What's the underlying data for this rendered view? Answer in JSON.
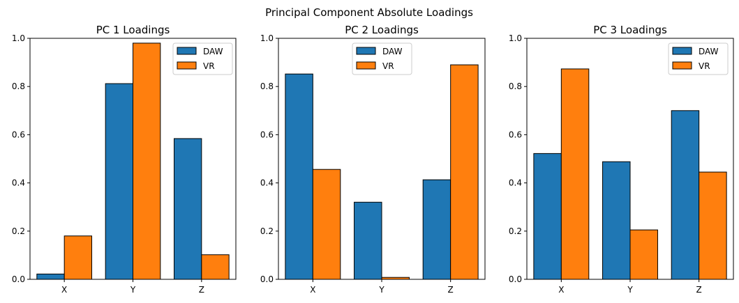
{
  "figure": {
    "title": "Principal Component Absolute Loadings"
  },
  "colors": {
    "DAW": "#1f77b4",
    "VR": "#ff7f0e",
    "edge": "#000000",
    "background": "#ffffff"
  },
  "chart_data": [
    {
      "type": "bar",
      "title": "PC 1 Loadings",
      "xlabel": "",
      "ylabel": "",
      "categories": [
        "X",
        "Y",
        "Z"
      ],
      "ylim": [
        0,
        1.0
      ],
      "yticks": [
        "0.0",
        "0.2",
        "0.4",
        "0.6",
        "0.8",
        "1.0"
      ],
      "grid": false,
      "legend": "top-right",
      "series": [
        {
          "name": "DAW",
          "values": [
            0.022,
            0.812,
            0.584
          ]
        },
        {
          "name": "VR",
          "values": [
            0.18,
            0.98,
            0.102
          ]
        }
      ]
    },
    {
      "type": "bar",
      "title": "PC 2 Loadings",
      "xlabel": "",
      "ylabel": "",
      "categories": [
        "X",
        "Y",
        "Z"
      ],
      "ylim": [
        0,
        1.0
      ],
      "yticks": [
        "0.0",
        "0.2",
        "0.4",
        "0.6",
        "0.8",
        "1.0"
      ],
      "grid": false,
      "legend": "top-center",
      "series": [
        {
          "name": "DAW",
          "values": [
            0.852,
            0.32,
            0.413
          ]
        },
        {
          "name": "VR",
          "values": [
            0.456,
            0.008,
            0.89
          ]
        }
      ]
    },
    {
      "type": "bar",
      "title": "PC 3 Loadings",
      "xlabel": "",
      "ylabel": "",
      "categories": [
        "X",
        "Y",
        "Z"
      ],
      "ylim": [
        0,
        1.0
      ],
      "yticks": [
        "0.0",
        "0.2",
        "0.4",
        "0.6",
        "0.8",
        "1.0"
      ],
      "grid": false,
      "legend": "top-right",
      "series": [
        {
          "name": "DAW",
          "values": [
            0.522,
            0.488,
            0.7
          ]
        },
        {
          "name": "VR",
          "values": [
            0.873,
            0.205,
            0.445
          ]
        }
      ]
    }
  ]
}
